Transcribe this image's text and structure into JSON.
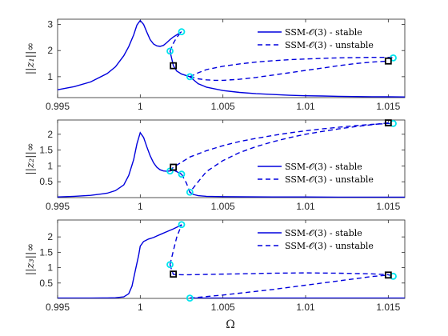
{
  "colors": {
    "stable": "#0000DD",
    "unstable": "#0000DD",
    "bifurcation_marker": "#00E5EE",
    "special_marker": "#000000",
    "axis": "#262626"
  },
  "figure": {
    "xlabel": "Ω"
  },
  "chart_data": [
    {
      "type": "line",
      "ylabel": "||z₁||∞",
      "xlim": [
        0.995,
        1.016
      ],
      "ylim": [
        0.2,
        3.2
      ],
      "x_ticks": [
        0.995,
        1,
        1.005,
        1.01,
        1.015
      ],
      "x_tick_labels": [
        "0.995",
        "1",
        "1.005",
        "1.01",
        "1.015"
      ],
      "y_ticks": [
        1,
        2,
        3
      ],
      "y_tick_labels": [
        "1",
        "2",
        "3"
      ],
      "legend": {
        "placement": "top-right",
        "stable_label": "SSM-𝒪(3) - stable",
        "unstable_label": "SSM-𝒪(3) - unstable"
      },
      "series": [
        {
          "style": "stable",
          "x": [
            0.995,
            0.996,
            0.997,
            0.998,
            0.9985,
            0.999,
            0.9993,
            0.9996,
            0.9998,
            1.0,
            1.0002,
            1.0004,
            1.0006,
            1.0008,
            1.001,
            1.0012,
            1.0014,
            1.0016,
            1.0018,
            1.002,
            1.0022,
            1.0025
          ],
          "y": [
            0.5,
            0.62,
            0.8,
            1.12,
            1.38,
            1.8,
            2.15,
            2.6,
            2.98,
            3.15,
            3.0,
            2.7,
            2.42,
            2.25,
            2.18,
            2.16,
            2.2,
            2.3,
            2.42,
            2.52,
            2.6,
            2.72
          ]
        },
        {
          "style": "stable",
          "x": [
            1.0018,
            1.0019,
            1.002,
            1.0022,
            1.0025,
            1.0028,
            1.003
          ],
          "y": [
            1.98,
            1.7,
            1.42,
            1.22,
            1.1,
            1.04,
            1.0
          ]
        },
        {
          "style": "stable",
          "x": [
            1.003,
            1.0035,
            1.004,
            1.005,
            1.006,
            1.007,
            1.008,
            1.009,
            1.01,
            1.011,
            1.012,
            1.013,
            1.014,
            1.015,
            1.016
          ],
          "y": [
            1.0,
            0.73,
            0.6,
            0.47,
            0.4,
            0.35,
            0.32,
            0.29,
            0.27,
            0.26,
            0.25,
            0.24,
            0.235,
            0.23,
            0.225
          ]
        },
        {
          "style": "unstable",
          "x": [
            1.0018,
            1.002,
            1.0022,
            1.0025
          ],
          "y": [
            1.98,
            2.28,
            2.5,
            2.72
          ]
        },
        {
          "style": "unstable",
          "x": [
            1.003,
            1.0035,
            1.004,
            1.005,
            1.006,
            1.007,
            1.008,
            1.009,
            1.01,
            1.011,
            1.012,
            1.013,
            1.014,
            1.015,
            1.0153
          ],
          "y": [
            1.0,
            1.15,
            1.27,
            1.4,
            1.49,
            1.56,
            1.61,
            1.65,
            1.68,
            1.7,
            1.72,
            1.73,
            1.74,
            1.74,
            1.72
          ]
        },
        {
          "style": "unstable",
          "x": [
            1.003,
            1.0035,
            1.004,
            1.0045,
            1.005,
            1.006,
            1.007,
            1.008,
            1.009,
            1.01,
            1.011,
            1.012,
            1.013,
            1.014,
            1.015
          ],
          "y": [
            1.0,
            0.92,
            0.88,
            0.86,
            0.86,
            0.9,
            0.97,
            1.06,
            1.15,
            1.24,
            1.33,
            1.42,
            1.5,
            1.56,
            1.6
          ]
        }
      ],
      "bifurcation_points": [
        {
          "x": 1.0018,
          "y": 1.98
        },
        {
          "x": 1.0025,
          "y": 2.72
        },
        {
          "x": 1.003,
          "y": 1.0
        },
        {
          "x": 1.0153,
          "y": 1.72
        }
      ],
      "special_points": [
        {
          "x": 1.002,
          "y": 1.42
        },
        {
          "x": 1.015,
          "y": 1.6
        }
      ]
    },
    {
      "type": "line",
      "ylabel": "||z₂||∞",
      "xlim": [
        0.995,
        1.016
      ],
      "ylim": [
        0.0,
        2.45
      ],
      "x_ticks": [
        0.995,
        1,
        1.005,
        1.01,
        1.015
      ],
      "x_tick_labels": [
        "0.995",
        "1",
        "1.005",
        "1.01",
        "1.015"
      ],
      "y_ticks": [
        0.5,
        1,
        1.5,
        2
      ],
      "y_tick_labels": [
        "0.5",
        "1",
        "1.5",
        "2"
      ],
      "legend": {
        "placement": "lower-right",
        "stable_label": "SSM-𝒪(3) - stable",
        "unstable_label": "SSM-𝒪(3) - unstable"
      },
      "series": [
        {
          "style": "stable",
          "x": [
            0.995,
            0.996,
            0.997,
            0.998,
            0.9985,
            0.999,
            0.9993,
            0.9996,
            0.9998,
            1.0,
            1.0002,
            1.0004,
            1.0006,
            1.0008,
            1.001,
            1.0012,
            1.0014,
            1.0016,
            1.0018,
            1.002,
            1.0022,
            1.0025
          ],
          "y": [
            0.02,
            0.04,
            0.07,
            0.14,
            0.22,
            0.4,
            0.7,
            1.2,
            1.7,
            2.05,
            1.9,
            1.6,
            1.32,
            1.1,
            0.96,
            0.88,
            0.84,
            0.83,
            0.84,
            0.87,
            0.82,
            0.74
          ]
        },
        {
          "style": "stable",
          "x": [
            1.003,
            1.0032,
            1.0035,
            1.004,
            1.005,
            1.006,
            1.008,
            1.01,
            1.012,
            1.014,
            1.016
          ],
          "y": [
            0.17,
            0.1,
            0.06,
            0.04,
            0.03,
            0.025,
            0.02,
            0.02,
            0.015,
            0.015,
            0.015
          ]
        },
        {
          "style": "unstable",
          "x": [
            1.0018,
            1.002,
            1.0025,
            1.003,
            1.004,
            1.005,
            1.006,
            1.007,
            1.008,
            1.009,
            1.01,
            1.011,
            1.012,
            1.013,
            1.014,
            1.015,
            1.0153
          ],
          "y": [
            0.84,
            0.96,
            1.12,
            1.28,
            1.48,
            1.64,
            1.77,
            1.87,
            1.96,
            2.04,
            2.11,
            2.17,
            2.22,
            2.27,
            2.31,
            2.34,
            2.34
          ]
        },
        {
          "style": "unstable",
          "x": [
            1.0025,
            1.0028,
            1.003,
            1.0035,
            1.004,
            1.005,
            1.006,
            1.007,
            1.008,
            1.009,
            1.01,
            1.011,
            1.012,
            1.013,
            1.014,
            1.015
          ],
          "y": [
            0.74,
            0.45,
            0.17,
            0.5,
            0.82,
            1.17,
            1.42,
            1.61,
            1.76,
            1.89,
            2.0,
            2.09,
            2.17,
            2.24,
            2.3,
            2.36
          ]
        }
      ],
      "bifurcation_points": [
        {
          "x": 1.0018,
          "y": 0.84
        },
        {
          "x": 1.0025,
          "y": 0.74
        },
        {
          "x": 1.003,
          "y": 0.17
        },
        {
          "x": 1.0153,
          "y": 2.34
        }
      ],
      "special_points": [
        {
          "x": 1.002,
          "y": 0.96
        },
        {
          "x": 1.015,
          "y": 2.36
        }
      ]
    },
    {
      "type": "line",
      "ylabel": "||z₃||∞",
      "xlim": [
        0.995,
        1.016
      ],
      "ylim": [
        0.0,
        2.55
      ],
      "x_ticks": [
        0.995,
        1,
        1.005,
        1.01,
        1.015
      ],
      "x_tick_labels": [
        "0.995",
        "1",
        "1.005",
        "1.01",
        "1.015"
      ],
      "y_ticks": [
        0.5,
        1,
        1.5,
        2
      ],
      "y_tick_labels": [
        "0.5",
        "1",
        "1.5",
        "2"
      ],
      "legend": {
        "placement": "top-right",
        "stable_label": "SSM-𝒪(3) - stable",
        "unstable_label": "SSM-𝒪(3) - unstable"
      },
      "series": [
        {
          "style": "stable",
          "x": [
            0.995,
            0.997,
            0.998,
            0.9985,
            0.999,
            0.9993,
            0.9995,
            0.9997,
            0.9999,
            1.0,
            1.0002,
            1.0005,
            1.0008,
            1.001,
            1.0013,
            1.0016,
            1.002,
            1.0023,
            1.0025
          ],
          "y": [
            0.01,
            0.01,
            0.015,
            0.02,
            0.05,
            0.15,
            0.4,
            0.9,
            1.4,
            1.7,
            1.85,
            1.93,
            1.98,
            2.03,
            2.1,
            2.17,
            2.26,
            2.34,
            2.4
          ]
        },
        {
          "style": "stable",
          "x": [
            1.003,
            1.0035,
            1.004,
            1.006,
            1.008,
            1.01,
            1.012,
            1.014,
            1.016
          ],
          "y": [
            0.01,
            0.01,
            0.01,
            0.01,
            0.01,
            0.01,
            0.01,
            0.01,
            0.01
          ]
        },
        {
          "style": "unstable",
          "x": [
            1.0018,
            1.002,
            1.0022,
            1.0025
          ],
          "y": [
            1.1,
            1.55,
            1.98,
            2.4
          ]
        },
        {
          "style": "unstable",
          "x": [
            1.0018,
            1.0019,
            1.002,
            1.0025,
            1.003,
            1.004,
            1.006,
            1.008,
            1.01,
            1.012,
            1.014,
            1.015,
            1.0153
          ],
          "y": [
            1.1,
            0.92,
            0.78,
            0.77,
            0.77,
            0.78,
            0.8,
            0.82,
            0.83,
            0.82,
            0.8,
            0.77,
            0.72
          ]
        },
        {
          "style": "unstable",
          "x": [
            1.003,
            1.004,
            1.005,
            1.006,
            1.007,
            1.008,
            1.009,
            1.01,
            1.011,
            1.012,
            1.013,
            1.014,
            1.015
          ],
          "y": [
            0.01,
            0.06,
            0.11,
            0.17,
            0.23,
            0.29,
            0.36,
            0.43,
            0.5,
            0.57,
            0.64,
            0.71,
            0.76
          ]
        }
      ],
      "bifurcation_points": [
        {
          "x": 1.0018,
          "y": 1.1
        },
        {
          "x": 1.0025,
          "y": 2.4
        },
        {
          "x": 1.003,
          "y": 0.01
        },
        {
          "x": 1.0153,
          "y": 0.72
        }
      ],
      "special_points": [
        {
          "x": 1.002,
          "y": 0.79
        },
        {
          "x": 1.015,
          "y": 0.76
        }
      ]
    }
  ]
}
